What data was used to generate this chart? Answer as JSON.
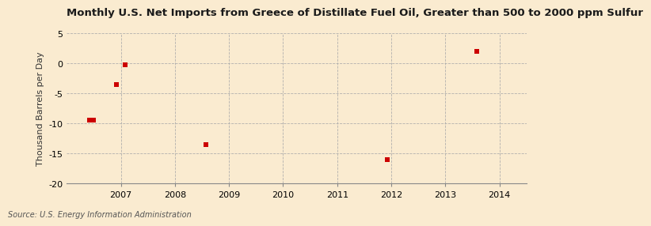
{
  "title": "Monthly U.S. Net Imports from Greece of Distillate Fuel Oil, Greater than 500 to 2000 ppm Sulfur",
  "ylabel": "Thousand Barrels per Day",
  "source": "Source: U.S. Energy Information Administration",
  "background_color": "#faebd0",
  "data_color": "#cc0000",
  "x_values": [
    2006.42,
    2006.5,
    2006.92,
    2007.08,
    2008.58,
    2011.92,
    2013.58
  ],
  "y_values": [
    -9.5,
    -9.5,
    -3.5,
    -0.2,
    -13.5,
    -16.0,
    2.0
  ],
  "xlim": [
    2006.0,
    2014.5
  ],
  "ylim": [
    -20,
    5
  ],
  "yticks": [
    -20,
    -15,
    -10,
    -5,
    0,
    5
  ],
  "xticks": [
    2007,
    2008,
    2009,
    2010,
    2011,
    2012,
    2013,
    2014
  ],
  "marker_size": 5,
  "title_fontsize": 9.5,
  "ylabel_fontsize": 8,
  "tick_fontsize": 8,
  "source_fontsize": 7
}
